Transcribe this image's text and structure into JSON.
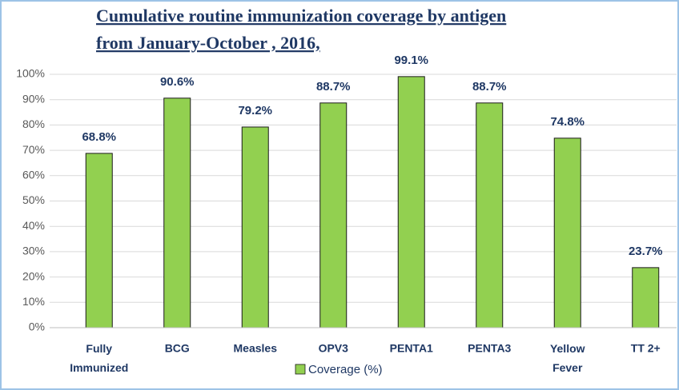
{
  "chart_data": {
    "type": "bar",
    "title": [
      "Cumulative routine immunization coverage by antigen",
      "from January-October , 2016,"
    ],
    "categories": [
      "Fully Immunized",
      "BCG",
      "Measles",
      "OPV3",
      "PENTA1",
      "PENTA3",
      "Yellow Fever",
      "TT 2+"
    ],
    "series": [
      {
        "name": "Coverage (%)",
        "color": "#92d050",
        "values": [
          68.8,
          90.6,
          79.2,
          88.7,
          99.1,
          88.7,
          74.8,
          23.7
        ],
        "value_labels": [
          "68.8%",
          "90.6%",
          "79.2%",
          "88.7%",
          "99.1%",
          "88.7%",
          "74.8%",
          "23.7%"
        ]
      }
    ],
    "ylim": [
      0,
      100
    ],
    "yticks": [
      {
        "value": 0,
        "label": "0%"
      },
      {
        "value": 10,
        "label": "10%"
      },
      {
        "value": 20,
        "label": "20%"
      },
      {
        "value": 30,
        "label": "30%"
      },
      {
        "value": 40,
        "label": "40%"
      },
      {
        "value": 50,
        "label": "50%"
      },
      {
        "value": 60,
        "label": "60%"
      },
      {
        "value": 70,
        "label": "70%"
      },
      {
        "value": 80,
        "label": "80%"
      },
      {
        "value": 90,
        "label": "90%"
      },
      {
        "value": 100,
        "label": "100%"
      }
    ],
    "grid": true,
    "legend": "bottom"
  }
}
